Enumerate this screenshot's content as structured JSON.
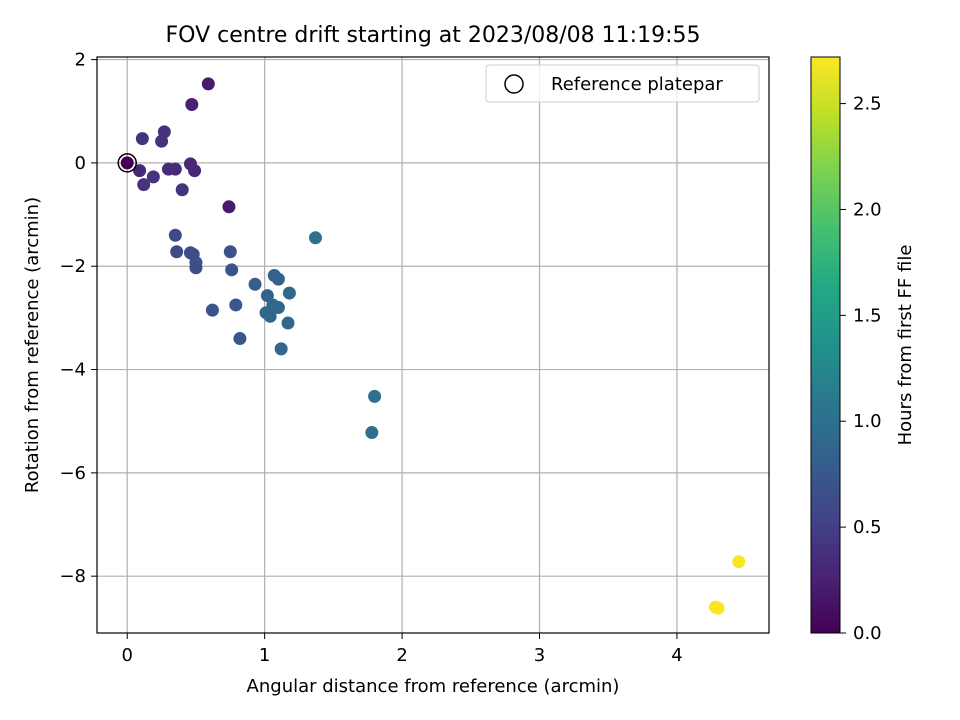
{
  "chart_data": {
    "type": "scatter",
    "title": "FOV centre drift starting at 2023/08/08 11:19:55",
    "xlabel": "Angular distance from reference (arcmin)",
    "ylabel": "Rotation from reference (arcmin)",
    "xlim": [
      -0.22,
      4.67
    ],
    "ylim": [
      -9.1,
      2.05
    ],
    "xticks": [
      0,
      1,
      2,
      3,
      4
    ],
    "yticks": [
      2,
      0,
      -2,
      -4,
      -6,
      -8
    ],
    "grid": true,
    "legend": {
      "placement": "top-right",
      "entries": [
        "Reference platepar"
      ]
    },
    "colorbar": {
      "label": "Hours from first FF file",
      "colormap": "viridis",
      "range": [
        0.0,
        2.72
      ],
      "ticks": [
        0.0,
        0.5,
        1.0,
        1.5,
        2.0,
        2.5
      ],
      "tick_labels": [
        "0.0",
        "0.5",
        "1.0",
        "1.5",
        "2.0",
        "2.5"
      ]
    },
    "reference_point": {
      "x": 0,
      "y": 0
    },
    "points": [
      {
        "x": 0.0,
        "y": 0.0,
        "c": 0.0
      },
      {
        "x": 0.09,
        "y": -0.15,
        "c": 0.3
      },
      {
        "x": 0.11,
        "y": 0.47,
        "c": 0.4
      },
      {
        "x": 0.12,
        "y": -0.42,
        "c": 0.4
      },
      {
        "x": 0.19,
        "y": -0.27,
        "c": 0.4
      },
      {
        "x": 0.25,
        "y": 0.42,
        "c": 0.4
      },
      {
        "x": 0.27,
        "y": 0.6,
        "c": 0.4
      },
      {
        "x": 0.3,
        "y": -0.12,
        "c": 0.35
      },
      {
        "x": 0.35,
        "y": -0.12,
        "c": 0.35
      },
      {
        "x": 0.4,
        "y": -0.52,
        "c": 0.4
      },
      {
        "x": 0.46,
        "y": -0.02,
        "c": 0.3
      },
      {
        "x": 0.49,
        "y": -0.15,
        "c": 0.3
      },
      {
        "x": 0.47,
        "y": 1.13,
        "c": 0.25
      },
      {
        "x": 0.59,
        "y": 1.53,
        "c": 0.2
      },
      {
        "x": 0.74,
        "y": -0.85,
        "c": 0.2
      },
      {
        "x": 0.35,
        "y": -1.4,
        "c": 0.6
      },
      {
        "x": 0.36,
        "y": -1.72,
        "c": 0.6
      },
      {
        "x": 0.46,
        "y": -1.74,
        "c": 0.65
      },
      {
        "x": 0.48,
        "y": -1.77,
        "c": 0.65
      },
      {
        "x": 0.5,
        "y": -1.93,
        "c": 0.65
      },
      {
        "x": 0.5,
        "y": -2.03,
        "c": 0.65
      },
      {
        "x": 0.75,
        "y": -1.72,
        "c": 0.7
      },
      {
        "x": 0.76,
        "y": -2.07,
        "c": 0.7
      },
      {
        "x": 0.62,
        "y": -2.85,
        "c": 0.7
      },
      {
        "x": 0.79,
        "y": -2.75,
        "c": 0.75
      },
      {
        "x": 0.82,
        "y": -3.4,
        "c": 0.75
      },
      {
        "x": 0.93,
        "y": -2.35,
        "c": 0.8
      },
      {
        "x": 1.02,
        "y": -2.57,
        "c": 0.85
      },
      {
        "x": 1.07,
        "y": -2.18,
        "c": 0.85
      },
      {
        "x": 1.1,
        "y": -2.25,
        "c": 0.85
      },
      {
        "x": 1.18,
        "y": -2.52,
        "c": 0.9
      },
      {
        "x": 1.01,
        "y": -2.9,
        "c": 0.9
      },
      {
        "x": 1.04,
        "y": -2.97,
        "c": 0.9
      },
      {
        "x": 1.06,
        "y": -2.75,
        "c": 0.9
      },
      {
        "x": 1.1,
        "y": -2.8,
        "c": 0.9
      },
      {
        "x": 1.17,
        "y": -3.1,
        "c": 0.9
      },
      {
        "x": 1.12,
        "y": -3.6,
        "c": 0.9
      },
      {
        "x": 1.37,
        "y": -1.45,
        "c": 1.0
      },
      {
        "x": 1.8,
        "y": -4.52,
        "c": 1.0
      },
      {
        "x": 1.78,
        "y": -5.22,
        "c": 1.0
      },
      {
        "x": 4.28,
        "y": -8.6,
        "c": 2.7
      },
      {
        "x": 4.3,
        "y": -8.62,
        "c": 2.7
      },
      {
        "x": 4.45,
        "y": -7.72,
        "c": 2.7
      }
    ]
  }
}
